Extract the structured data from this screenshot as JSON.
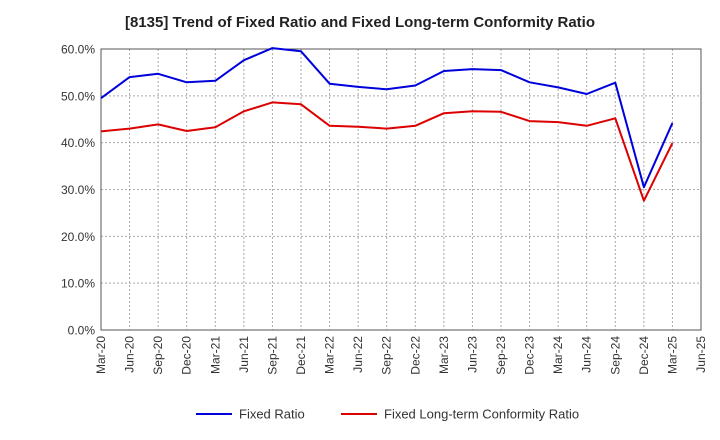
{
  "chart_data": {
    "type": "line",
    "title": "[8135]  Trend of Fixed Ratio and Fixed Long-term Conformity Ratio",
    "xlabel": "",
    "ylabel": "",
    "categories": [
      "Mar-20",
      "Jun-20",
      "Sep-20",
      "Dec-20",
      "Mar-21",
      "Jun-21",
      "Sep-21",
      "Dec-21",
      "Mar-22",
      "Jun-22",
      "Sep-22",
      "Dec-22",
      "Mar-23",
      "Jun-23",
      "Sep-23",
      "Dec-23",
      "Mar-24",
      "Jun-24",
      "Sep-24",
      "Dec-24",
      "Mar-25",
      "Jun-25"
    ],
    "ylim": [
      0,
      60
    ],
    "yticks": [
      0,
      10,
      20,
      30,
      40,
      50,
      60
    ],
    "ytick_labels": [
      "0.0%",
      "10.0%",
      "20.0%",
      "30.0%",
      "40.0%",
      "50.0%",
      "60.0%"
    ],
    "grid": true,
    "legend_position": "bottom",
    "series": [
      {
        "name": "Fixed Ratio",
        "color": "#0000dd",
        "values": [
          49.5,
          54.0,
          54.7,
          52.9,
          53.2,
          57.6,
          60.2,
          59.5,
          52.6,
          51.9,
          51.4,
          52.2,
          55.3,
          55.7,
          55.5,
          52.9,
          51.8,
          50.4,
          52.8,
          30.5,
          44.2,
          null
        ]
      },
      {
        "name": "Fixed Long-term Conformity Ratio",
        "color": "#dd0000",
        "values": [
          42.4,
          43.0,
          43.9,
          42.5,
          43.3,
          46.7,
          48.6,
          48.2,
          43.6,
          43.4,
          43.0,
          43.6,
          46.3,
          46.7,
          46.6,
          44.6,
          44.4,
          43.6,
          45.2,
          27.6,
          39.9,
          null
        ]
      }
    ]
  }
}
